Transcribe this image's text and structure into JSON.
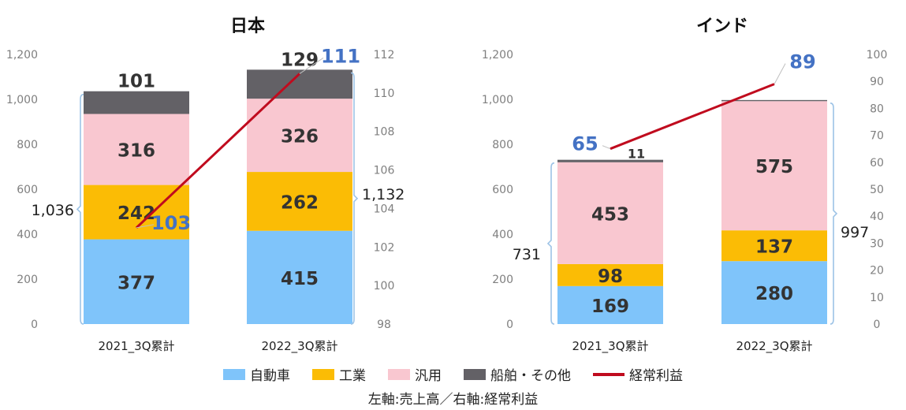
{
  "colors": {
    "自動車": "#7fc4fa",
    "工業": "#fbbc05",
    "汎用": "#f9c7d0",
    "船舶・その他": "#636166",
    "経常利益": "#c00b1e",
    "profit_label": "#4472c4"
  },
  "legend": [
    {
      "label": "自動車",
      "kind": "box",
      "color": "#7fc4fa"
    },
    {
      "label": "工業",
      "kind": "box",
      "color": "#fbbc05"
    },
    {
      "label": "汎用",
      "kind": "box",
      "color": "#f9c7d0"
    },
    {
      "label": "船舶・その他",
      "kind": "box",
      "color": "#636166"
    },
    {
      "label": "経常利益",
      "kind": "line",
      "color": "#c00b1e"
    }
  ],
  "footnote": "左軸:売上高／右軸:経常利益",
  "chart_data": [
    {
      "type": "bar",
      "stacked": true,
      "title": "日本",
      "categories": [
        "2021_3Q累計",
        "2022_3Q累計"
      ],
      "series": [
        {
          "name": "自動車",
          "values": [
            377,
            415
          ]
        },
        {
          "name": "工業",
          "values": [
            242,
            262
          ]
        },
        {
          "name": "汎用",
          "values": [
            316,
            326
          ]
        },
        {
          "name": "船舶・その他",
          "values": [
            101,
            129
          ]
        }
      ],
      "totals": [
        "1,036",
        "1,132"
      ],
      "line": {
        "name": "経常利益",
        "values": [
          103,
          111
        ],
        "axis": "right"
      },
      "ylim": [
        0,
        1200
      ],
      "y_ticks": [
        "0",
        "200",
        "400",
        "600",
        "800",
        "1,000",
        "1,200"
      ],
      "y2lim": [
        98,
        112
      ],
      "y2_ticks": [
        "98",
        "100",
        "102",
        "104",
        "106",
        "108",
        "110",
        "112"
      ]
    },
    {
      "type": "bar",
      "stacked": true,
      "title": "インド",
      "categories": [
        "2021_3Q累計",
        "2022_3Q累計"
      ],
      "series": [
        {
          "name": "自動車",
          "values": [
            169,
            280
          ]
        },
        {
          "name": "工業",
          "values": [
            98,
            137
          ]
        },
        {
          "name": "汎用",
          "values": [
            453,
            575
          ]
        },
        {
          "name": "船舶・その他",
          "values": [
            11,
            5
          ]
        }
      ],
      "segment_labels_hidden": {
        "船舶・その他": [
          false,
          true
        ]
      },
      "totals": [
        "731",
        "997"
      ],
      "line": {
        "name": "経常利益",
        "values": [
          65,
          89
        ],
        "axis": "right"
      },
      "ylim": [
        0,
        1200
      ],
      "y_ticks": [
        "0",
        "200",
        "400",
        "600",
        "800",
        "1,000",
        "1,200"
      ],
      "y2lim": [
        0,
        100
      ],
      "y2_ticks": [
        "0",
        "10",
        "20",
        "30",
        "40",
        "50",
        "60",
        "70",
        "80",
        "90",
        "100"
      ]
    }
  ]
}
